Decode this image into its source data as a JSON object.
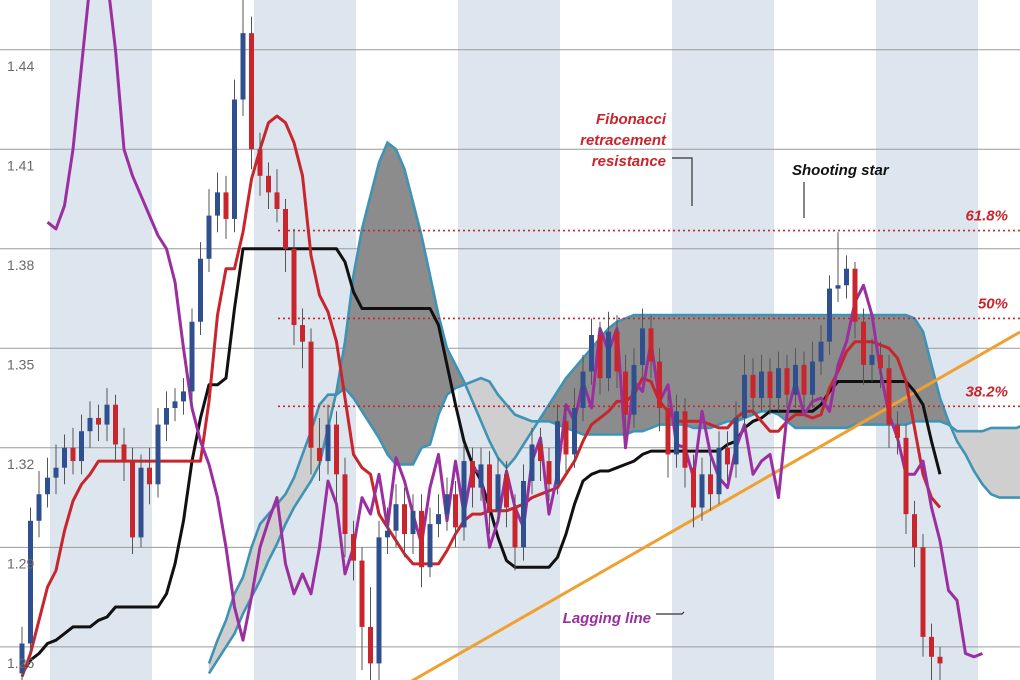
{
  "chart_data": {
    "type": "candlestick",
    "title": "",
    "xlabel": "",
    "ylabel": "",
    "ylim": [
      1.25,
      1.455
    ],
    "y_ticks": [
      "1.44",
      "1.41",
      "1.38",
      "1.35",
      "1.32",
      "1.29",
      "1.26"
    ],
    "grid": true,
    "colors": {
      "up": "#2f4f8f",
      "down": "#c8252c",
      "band": "#dde6ee",
      "grid": "#9a9a9a",
      "cloud_gray": "#8c8c8c",
      "cloud_light": "#cfcfcf",
      "cloud_edge": "#3f93b4",
      "tenkan": "#c8252c",
      "kijun": "#111111",
      "lagging": "#9b2fa0",
      "trendline": "#f0a030",
      "fib": "#c8252c"
    },
    "fib_levels": [
      {
        "label": "61.8%",
        "value": 1.3855
      },
      {
        "label": "50%",
        "value": 1.359
      },
      {
        "label": "38.2%",
        "value": 1.3325
      }
    ],
    "annotations": [
      {
        "text": "Fibonacci",
        "color": "#c8252c"
      },
      {
        "text": "retracement",
        "color": "#c8252c"
      },
      {
        "text": "resistance",
        "color": "#c8252c"
      },
      {
        "text": "Shooting star",
        "color": "#111111"
      },
      {
        "text": "Lagging line",
        "color": "#9b2fa0"
      }
    ],
    "candles": [
      [
        1.252,
        1.261,
        1.248,
        1.266
      ],
      [
        1.261,
        1.298,
        1.258,
        1.302
      ],
      [
        1.298,
        1.306,
        1.293,
        1.313
      ],
      [
        1.306,
        1.311,
        1.302,
        1.317
      ],
      [
        1.311,
        1.314,
        1.306,
        1.321
      ],
      [
        1.314,
        1.32,
        1.309,
        1.324
      ],
      [
        1.32,
        1.316,
        1.312,
        1.326
      ],
      [
        1.316,
        1.325,
        1.312,
        1.33
      ],
      [
        1.325,
        1.329,
        1.32,
        1.334
      ],
      [
        1.329,
        1.327,
        1.322,
        1.333
      ],
      [
        1.327,
        1.333,
        1.322,
        1.338
      ],
      [
        1.333,
        1.321,
        1.316,
        1.336
      ],
      [
        1.321,
        1.316,
        1.31,
        1.326
      ],
      [
        1.316,
        1.293,
        1.288,
        1.32
      ],
      [
        1.293,
        1.314,
        1.29,
        1.318
      ],
      [
        1.314,
        1.309,
        1.303,
        1.32
      ],
      [
        1.309,
        1.327,
        1.305,
        1.332
      ],
      [
        1.327,
        1.332,
        1.322,
        1.337
      ],
      [
        1.332,
        1.334,
        1.328,
        1.338
      ],
      [
        1.334,
        1.337,
        1.33,
        1.341
      ],
      [
        1.337,
        1.358,
        1.333,
        1.362
      ],
      [
        1.358,
        1.377,
        1.354,
        1.382
      ],
      [
        1.377,
        1.39,
        1.373,
        1.398
      ],
      [
        1.39,
        1.397,
        1.385,
        1.403
      ],
      [
        1.397,
        1.389,
        1.383,
        1.402
      ],
      [
        1.389,
        1.425,
        1.385,
        1.431
      ],
      [
        1.425,
        1.445,
        1.42,
        1.455
      ],
      [
        1.445,
        1.41,
        1.404,
        1.45
      ],
      [
        1.41,
        1.402,
        1.396,
        1.415
      ],
      [
        1.402,
        1.397,
        1.392,
        1.406
      ],
      [
        1.397,
        1.392,
        1.388,
        1.404
      ],
      [
        1.392,
        1.38,
        1.373,
        1.395
      ],
      [
        1.38,
        1.357,
        1.351,
        1.386
      ],
      [
        1.357,
        1.352,
        1.344,
        1.362
      ],
      [
        1.352,
        1.32,
        1.312,
        1.356
      ],
      [
        1.32,
        1.316,
        1.31,
        1.329
      ],
      [
        1.316,
        1.327,
        1.312,
        1.333
      ],
      [
        1.327,
        1.312,
        1.304,
        1.331
      ],
      [
        1.312,
        1.294,
        1.287,
        1.317
      ],
      [
        1.294,
        1.286,
        1.28,
        1.298
      ],
      [
        1.286,
        1.266,
        1.253,
        1.29
      ],
      [
        1.266,
        1.255,
        1.246,
        1.278
      ],
      [
        1.255,
        1.293,
        1.25,
        1.298
      ],
      [
        1.293,
        1.295,
        1.288,
        1.302
      ],
      [
        1.295,
        1.303,
        1.29,
        1.309
      ],
      [
        1.303,
        1.294,
        1.287,
        1.308
      ],
      [
        1.294,
        1.301,
        1.288,
        1.306
      ],
      [
        1.301,
        1.284,
        1.278,
        1.306
      ],
      [
        1.284,
        1.297,
        1.281,
        1.302
      ],
      [
        1.297,
        1.3,
        1.293,
        1.306
      ],
      [
        1.3,
        1.306,
        1.295,
        1.311
      ],
      [
        1.306,
        1.296,
        1.29,
        1.31
      ],
      [
        1.296,
        1.316,
        1.292,
        1.321
      ],
      [
        1.316,
        1.308,
        1.302,
        1.32
      ],
      [
        1.308,
        1.315,
        1.304,
        1.32
      ],
      [
        1.315,
        1.301,
        1.294,
        1.319
      ],
      [
        1.301,
        1.312,
        1.297,
        1.317
      ],
      [
        1.312,
        1.302,
        1.296,
        1.316
      ],
      [
        1.302,
        1.29,
        1.283,
        1.306
      ],
      [
        1.29,
        1.31,
        1.286,
        1.315
      ],
      [
        1.31,
        1.321,
        1.306,
        1.326
      ],
      [
        1.321,
        1.316,
        1.31,
        1.326
      ],
      [
        1.316,
        1.309,
        1.304,
        1.32
      ],
      [
        1.309,
        1.328,
        1.306,
        1.333
      ],
      [
        1.328,
        1.318,
        1.312,
        1.333
      ],
      [
        1.318,
        1.332,
        1.314,
        1.338
      ],
      [
        1.332,
        1.343,
        1.328,
        1.348
      ],
      [
        1.343,
        1.354,
        1.339,
        1.359
      ],
      [
        1.354,
        1.341,
        1.336,
        1.358
      ],
      [
        1.341,
        1.355,
        1.337,
        1.361
      ],
      [
        1.355,
        1.343,
        1.338,
        1.36
      ],
      [
        1.343,
        1.33,
        1.324,
        1.348
      ],
      [
        1.33,
        1.345,
        1.326,
        1.35
      ],
      [
        1.345,
        1.356,
        1.341,
        1.362
      ],
      [
        1.356,
        1.346,
        1.341,
        1.36
      ],
      [
        1.346,
        1.332,
        1.325,
        1.35
      ],
      [
        1.332,
        1.318,
        1.311,
        1.336
      ],
      [
        1.318,
        1.331,
        1.314,
        1.336
      ],
      [
        1.331,
        1.314,
        1.308,
        1.335
      ],
      [
        1.314,
        1.302,
        1.296,
        1.318
      ],
      [
        1.302,
        1.312,
        1.298,
        1.317
      ],
      [
        1.312,
        1.306,
        1.301,
        1.317
      ],
      [
        1.306,
        1.32,
        1.303,
        1.325
      ],
      [
        1.32,
        1.315,
        1.31,
        1.325
      ],
      [
        1.315,
        1.329,
        1.311,
        1.334
      ],
      [
        1.329,
        1.342,
        1.325,
        1.348
      ],
      [
        1.342,
        1.335,
        1.33,
        1.347
      ],
      [
        1.335,
        1.343,
        1.331,
        1.348
      ],
      [
        1.343,
        1.335,
        1.33,
        1.347
      ],
      [
        1.335,
        1.344,
        1.331,
        1.349
      ],
      [
        1.344,
        1.336,
        1.332,
        1.348
      ],
      [
        1.336,
        1.345,
        1.332,
        1.35
      ],
      [
        1.345,
        1.336,
        1.331,
        1.349
      ],
      [
        1.336,
        1.346,
        1.332,
        1.352
      ],
      [
        1.346,
        1.352,
        1.342,
        1.357
      ],
      [
        1.352,
        1.368,
        1.348,
        1.372
      ],
      [
        1.368,
        1.369,
        1.364,
        1.385
      ],
      [
        1.369,
        1.374,
        1.365,
        1.378
      ],
      [
        1.374,
        1.358,
        1.353,
        1.376
      ],
      [
        1.358,
        1.345,
        1.339,
        1.362
      ],
      [
        1.345,
        1.348,
        1.34,
        1.353
      ],
      [
        1.348,
        1.344,
        1.338,
        1.352
      ],
      [
        1.344,
        1.327,
        1.32,
        1.348
      ],
      [
        1.327,
        1.323,
        1.318,
        1.331
      ],
      [
        1.323,
        1.3,
        1.294,
        1.327
      ],
      [
        1.3,
        1.29,
        1.284,
        1.304
      ],
      [
        1.29,
        1.263,
        1.257,
        1.294
      ],
      [
        1.263,
        1.257,
        1.25,
        1.267
      ],
      [
        1.257,
        1.255,
        1.249,
        1.26
      ]
    ],
    "tenkan": [
      1.251,
      1.258,
      1.268,
      1.278,
      1.283,
      1.295,
      1.304,
      1.309,
      1.312,
      1.316,
      1.316,
      1.316,
      1.316,
      1.316,
      1.316,
      1.316,
      1.316,
      1.316,
      1.316,
      1.316,
      1.316,
      1.316,
      1.334,
      1.36,
      1.374,
      1.374,
      1.385,
      1.401,
      1.41,
      1.418,
      1.42,
      1.418,
      1.412,
      1.402,
      1.378,
      1.366,
      1.361,
      1.352,
      1.335,
      1.318,
      1.314,
      1.312,
      1.3,
      1.296,
      1.292,
      1.288,
      1.285,
      1.285,
      1.285,
      1.285,
      1.289,
      1.294,
      1.298,
      1.3,
      1.3,
      1.301,
      1.301,
      1.301,
      1.302,
      1.303,
      1.305,
      1.306,
      1.307,
      1.308,
      1.312,
      1.316,
      1.322,
      1.327,
      1.329,
      1.331,
      1.334,
      1.334,
      1.336,
      1.341,
      1.34,
      1.334,
      1.331,
      1.328,
      1.328,
      1.328,
      1.328,
      1.327,
      1.326,
      1.326,
      1.329,
      1.331,
      1.331,
      1.328,
      1.325,
      1.325,
      1.328,
      1.33,
      1.33,
      1.329,
      1.33,
      1.338,
      1.343,
      1.349,
      1.352,
      1.352,
      1.352,
      1.351,
      1.35,
      1.347,
      1.34,
      1.326,
      1.312,
      1.305,
      1.302
    ],
    "kijun": [
      1.252,
      1.256,
      1.258,
      1.261,
      1.262,
      1.264,
      1.266,
      1.266,
      1.266,
      1.268,
      1.269,
      1.272,
      1.272,
      1.272,
      1.272,
      1.272,
      1.272,
      1.276,
      1.285,
      1.298,
      1.316,
      1.329,
      1.339,
      1.339,
      1.341,
      1.362,
      1.38,
      1.38,
      1.38,
      1.38,
      1.38,
      1.38,
      1.38,
      1.38,
      1.38,
      1.38,
      1.38,
      1.38,
      1.376,
      1.367,
      1.362,
      1.362,
      1.362,
      1.362,
      1.362,
      1.362,
      1.362,
      1.362,
      1.362,
      1.357,
      1.345,
      1.333,
      1.322,
      1.315,
      1.31,
      1.302,
      1.293,
      1.286,
      1.284,
      1.284,
      1.284,
      1.284,
      1.284,
      1.287,
      1.294,
      1.303,
      1.31,
      1.312,
      1.313,
      1.313,
      1.314,
      1.315,
      1.316,
      1.318,
      1.319,
      1.319,
      1.319,
      1.319,
      1.319,
      1.319,
      1.319,
      1.319,
      1.319,
      1.321,
      1.322,
      1.326,
      1.328,
      1.329,
      1.331,
      1.331,
      1.331,
      1.331,
      1.331,
      1.331,
      1.333,
      1.337,
      1.34,
      1.34,
      1.34,
      1.34,
      1.34,
      1.34,
      1.34,
      1.34,
      1.34,
      1.337,
      1.333,
      1.322,
      1.312
    ],
    "span_a": [
      1.255,
      1.262,
      1.268,
      1.276,
      1.281,
      1.29,
      1.297,
      1.3,
      1.303,
      1.306,
      1.311,
      1.318,
      1.325,
      1.333,
      1.336,
      1.336,
      1.338,
      1.335,
      1.331,
      1.327,
      1.323,
      1.318,
      1.315,
      1.315,
      1.315,
      1.32,
      1.321,
      1.33,
      1.336,
      1.338,
      1.339,
      1.34,
      1.341,
      1.34,
      1.336,
      1.333,
      1.33,
      1.329,
      1.328,
      1.328,
      1.328,
      1.327,
      1.326,
      1.325,
      1.324,
      1.324,
      1.324,
      1.324,
      1.324,
      1.324,
      1.325,
      1.325,
      1.326,
      1.327,
      1.327,
      1.327,
      1.327,
      1.326,
      1.326,
      1.326,
      1.327,
      1.328,
      1.328,
      1.329,
      1.33,
      1.331,
      1.331,
      1.33,
      1.328,
      1.326,
      1.326,
      1.326,
      1.326,
      1.326,
      1.326,
      1.326,
      1.327,
      1.327,
      1.327,
      1.327,
      1.327,
      1.327,
      1.327,
      1.328,
      1.328,
      1.328,
      1.328,
      1.327,
      1.325,
      1.325,
      1.325,
      1.325,
      1.326,
      1.326,
      1.326,
      1.326,
      1.327,
      1.329,
      1.331,
      1.331,
      1.33,
      1.33,
      1.329,
      1.328,
      1.327,
      1.326,
      1.325,
      1.324,
      1.324,
      1.324,
      1.324,
      1.324,
      1.325,
      1.325,
      1.325,
      1.325,
      1.326,
      1.326,
      1.326,
      1.326,
      1.326,
      1.326,
      1.326,
      1.326,
      1.326,
      1.326,
      1.327,
      1.327,
      1.327,
      1.327,
      1.327,
      1.328,
      1.328,
      1.329,
      1.331,
      1.333,
      1.335,
      1.337,
      1.339,
      1.341,
      1.342,
      1.342,
      1.342
    ],
    "span_b": [
      1.252,
      1.256,
      1.26,
      1.264,
      1.27,
      1.275,
      1.28,
      1.286,
      1.291,
      1.297,
      1.302,
      1.306,
      1.31,
      1.315,
      1.326,
      1.337,
      1.352,
      1.372,
      1.386,
      1.396,
      1.406,
      1.412,
      1.41,
      1.404,
      1.394,
      1.384,
      1.372,
      1.36,
      1.35,
      1.345,
      1.34,
      1.334,
      1.328,
      1.322,
      1.317,
      1.314,
      1.317,
      1.321,
      1.325,
      1.329,
      1.333,
      1.337,
      1.341,
      1.344,
      1.347,
      1.35,
      1.353,
      1.356,
      1.358,
      1.359,
      1.36,
      1.36,
      1.36,
      1.36,
      1.36,
      1.36,
      1.36,
      1.36,
      1.36,
      1.36,
      1.36,
      1.36,
      1.36,
      1.36,
      1.36,
      1.36,
      1.36,
      1.36,
      1.36,
      1.36,
      1.36,
      1.36,
      1.36,
      1.36,
      1.36,
      1.36,
      1.36,
      1.36,
      1.36,
      1.36,
      1.36,
      1.36,
      1.36,
      1.359,
      1.355,
      1.345,
      1.335,
      1.328,
      1.322,
      1.318,
      1.313,
      1.309,
      1.306,
      1.305,
      1.305,
      1.305,
      1.305,
      1.305,
      1.305,
      1.305,
      1.308,
      1.312,
      1.316,
      1.32,
      1.322,
      1.322,
      1.322,
      1.322,
      1.322,
      1.322,
      1.322,
      1.322,
      1.322,
      1.322,
      1.322,
      1.322,
      1.322,
      1.322,
      1.322,
      1.322,
      1.322,
      1.322,
      1.322,
      1.322,
      1.322,
      1.322,
      1.322,
      1.322,
      1.322,
      1.322,
      1.322,
      1.322,
      1.322,
      1.322,
      1.322,
      1.322,
      1.322,
      1.322,
      1.322,
      1.322,
      1.322,
      1.322,
      1.322,
      1.322,
      1.322
    ],
    "lagging": [
      1.388,
      1.386,
      1.393,
      1.41,
      1.435,
      1.46,
      1.47,
      1.462,
      1.44,
      1.41,
      1.402,
      1.396,
      1.39,
      1.384,
      1.38,
      1.37,
      1.35,
      1.332,
      1.322,
      1.315,
      1.305,
      1.29,
      1.272,
      1.262,
      1.275,
      1.29,
      1.298,
      1.305,
      1.285,
      1.276,
      1.282,
      1.276,
      1.29,
      1.31,
      1.303,
      1.282,
      1.29,
      1.305,
      1.3,
      1.312,
      1.296,
      1.317,
      1.31,
      1.3,
      1.291,
      1.308,
      1.318,
      1.298,
      1.316,
      1.3,
      1.314,
      1.312,
      1.29,
      1.298,
      1.313,
      1.302,
      1.296,
      1.316,
      1.323,
      1.3,
      1.312,
      1.333,
      1.328,
      1.34,
      1.332,
      1.356,
      1.349,
      1.356,
      1.32,
      1.34,
      1.337,
      1.352,
      1.334,
      1.339,
      1.321,
      1.32,
      1.311,
      1.331,
      1.318,
      1.311,
      1.308,
      1.32,
      1.327,
      1.312,
      1.316,
      1.318,
      1.305,
      1.33,
      1.34,
      1.33,
      1.334,
      1.335,
      1.331,
      1.345,
      1.352,
      1.364,
      1.369,
      1.36,
      1.343,
      1.33,
      1.323,
      1.312,
      1.312,
      1.316,
      1.302,
      1.292,
      1.277,
      1.274,
      1.258,
      1.257,
      1.258
    ]
  }
}
